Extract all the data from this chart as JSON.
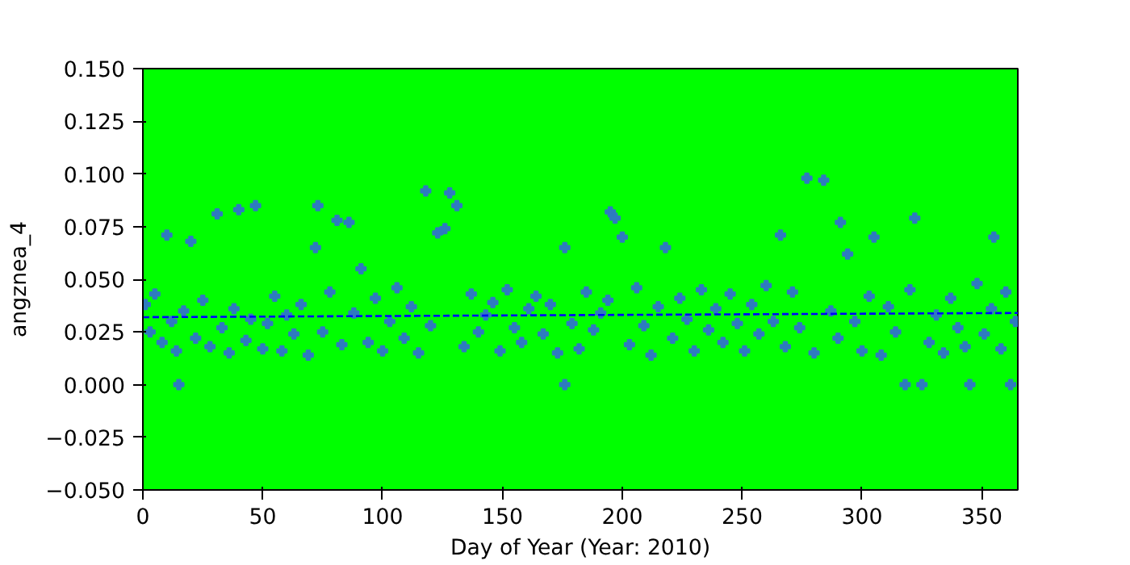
{
  "chart_data": {
    "type": "scatter",
    "xlabel": "Day of Year (Year: 2010)",
    "ylabel": "angznea_4",
    "xlim": [
      0,
      365
    ],
    "ylim": [
      -0.05,
      0.15
    ],
    "xticks": [
      0,
      50,
      100,
      150,
      200,
      250,
      300,
      350
    ],
    "yticks": [
      {
        "value": -0.05,
        "label": "−0.050"
      },
      {
        "value": -0.025,
        "label": "−0.025"
      },
      {
        "value": 0,
        "label": "0.000"
      },
      {
        "value": 0.025,
        "label": "0.025"
      },
      {
        "value": 0.05,
        "label": "0.050"
      },
      {
        "value": 0.075,
        "label": "0.075"
      },
      {
        "value": 0.1,
        "label": "0.100"
      },
      {
        "value": 0.125,
        "label": "0.125"
      },
      {
        "value": 0.15,
        "label": "0.150"
      }
    ],
    "grid": false,
    "series": [
      {
        "marker": "cross",
        "color": "#2e7bbf",
        "x": [
          1,
          3,
          5,
          8,
          10,
          12,
          14,
          15,
          17,
          20,
          22,
          25,
          28,
          31,
          33,
          36,
          38,
          40,
          43,
          45,
          47,
          50,
          52,
          55,
          58,
          60,
          63,
          66,
          69,
          72,
          73,
          75,
          78,
          81,
          83,
          86,
          88,
          91,
          94,
          97,
          100,
          103,
          106,
          109,
          112,
          115,
          118,
          120,
          123,
          126,
          128,
          131,
          134,
          137,
          140,
          143,
          146,
          149,
          152,
          155,
          158,
          161,
          164,
          167,
          170,
          173,
          176,
          176,
          179,
          182,
          185,
          188,
          191,
          194,
          195,
          197,
          200,
          203,
          206,
          209,
          212,
          215,
          218,
          221,
          224,
          227,
          230,
          233,
          236,
          239,
          242,
          245,
          248,
          251,
          254,
          257,
          260,
          263,
          266,
          268,
          271,
          274,
          277,
          280,
          284,
          287,
          290,
          291,
          294,
          297,
          300,
          303,
          305,
          308,
          311,
          314,
          318,
          320,
          322,
          325,
          328,
          331,
          334,
          337,
          340,
          343,
          345,
          348,
          351,
          354,
          355,
          358,
          360,
          362,
          364
        ],
        "values": [
          0.038,
          0.025,
          0.043,
          0.02,
          0.071,
          0.03,
          0.016,
          0.0,
          0.035,
          0.068,
          0.022,
          0.04,
          0.018,
          0.081,
          0.027,
          0.015,
          0.036,
          0.083,
          0.021,
          0.031,
          0.085,
          0.017,
          0.029,
          0.042,
          0.016,
          0.033,
          0.024,
          0.038,
          0.014,
          0.065,
          0.085,
          0.025,
          0.044,
          0.078,
          0.019,
          0.077,
          0.034,
          0.055,
          0.02,
          0.041,
          0.016,
          0.03,
          0.046,
          0.022,
          0.037,
          0.015,
          0.092,
          0.028,
          0.072,
          0.074,
          0.091,
          0.085,
          0.018,
          0.043,
          0.025,
          0.033,
          0.039,
          0.016,
          0.045,
          0.027,
          0.02,
          0.036,
          0.042,
          0.024,
          0.038,
          0.015,
          0.065,
          0.0,
          0.029,
          0.017,
          0.044,
          0.026,
          0.034,
          0.04,
          0.082,
          0.079,
          0.07,
          0.019,
          0.046,
          0.028,
          0.014,
          0.037,
          0.065,
          0.022,
          0.041,
          0.031,
          0.016,
          0.045,
          0.026,
          0.036,
          0.02,
          0.043,
          0.029,
          0.016,
          0.038,
          0.024,
          0.047,
          0.03,
          0.071,
          0.018,
          0.044,
          0.027,
          0.098,
          0.015,
          0.097,
          0.035,
          0.022,
          0.077,
          0.062,
          0.03,
          0.016,
          0.042,
          0.07,
          0.014,
          0.037,
          0.025,
          0.0,
          0.045,
          0.079,
          0.0,
          0.02,
          0.033,
          0.015,
          0.041,
          0.027,
          0.018,
          0.0,
          0.048,
          0.024,
          0.036,
          0.07,
          0.017,
          0.044,
          0.0,
          0.03
        ]
      },
      {
        "type": "line",
        "color": "#0000ff",
        "line_style": "dashed",
        "x": [
          0,
          365
        ],
        "values": [
          0.032,
          0.034
        ]
      }
    ]
  }
}
